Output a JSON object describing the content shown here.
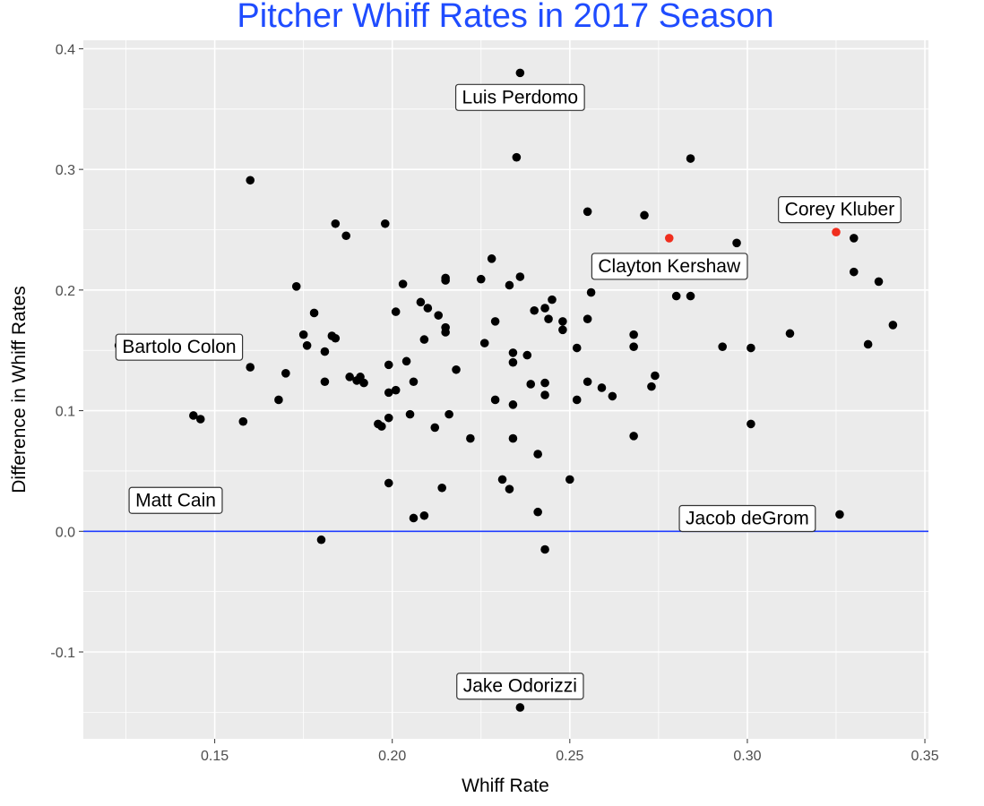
{
  "chart_data": {
    "type": "scatter",
    "title": "Pitcher Whiff Rates in 2017 Season",
    "xlabel": "Whiff Rate",
    "ylabel": "Difference in Whiff Rates",
    "xlim": [
      0.113,
      0.351
    ],
    "ylim": [
      -0.172,
      0.407
    ],
    "x_ticks": [
      "0.15",
      "0.20",
      "0.25",
      "0.30",
      "0.35"
    ],
    "y_ticks": [
      "-0.1",
      "0.0",
      "0.1",
      "0.2",
      "0.3",
      "0.4"
    ],
    "grid": true,
    "reference_line": {
      "y": 0.0,
      "color": "#1f3cff"
    },
    "colors": {
      "title": "#1f4cff",
      "point": "#000000",
      "highlight": "#f02e1e",
      "panel_background": "#ebebeb",
      "grid": "#ffffff"
    },
    "points": [
      {
        "x": 0.236,
        "y": 0.38
      },
      {
        "x": 0.235,
        "y": 0.31
      },
      {
        "x": 0.284,
        "y": 0.309
      },
      {
        "x": 0.16,
        "y": 0.291
      },
      {
        "x": 0.255,
        "y": 0.265
      },
      {
        "x": 0.271,
        "y": 0.262
      },
      {
        "x": 0.184,
        "y": 0.255
      },
      {
        "x": 0.198,
        "y": 0.255
      },
      {
        "x": 0.187,
        "y": 0.245
      },
      {
        "x": 0.33,
        "y": 0.243
      },
      {
        "x": 0.297,
        "y": 0.239
      },
      {
        "x": 0.228,
        "y": 0.226
      },
      {
        "x": 0.33,
        "y": 0.215
      },
      {
        "x": 0.236,
        "y": 0.211
      },
      {
        "x": 0.215,
        "y": 0.21
      },
      {
        "x": 0.225,
        "y": 0.209
      },
      {
        "x": 0.215,
        "y": 0.208
      },
      {
        "x": 0.337,
        "y": 0.207
      },
      {
        "x": 0.203,
        "y": 0.205
      },
      {
        "x": 0.233,
        "y": 0.204
      },
      {
        "x": 0.173,
        "y": 0.203
      },
      {
        "x": 0.256,
        "y": 0.198
      },
      {
        "x": 0.28,
        "y": 0.195
      },
      {
        "x": 0.284,
        "y": 0.195
      },
      {
        "x": 0.245,
        "y": 0.192
      },
      {
        "x": 0.208,
        "y": 0.19
      },
      {
        "x": 0.21,
        "y": 0.185
      },
      {
        "x": 0.243,
        "y": 0.185
      },
      {
        "x": 0.24,
        "y": 0.183
      },
      {
        "x": 0.201,
        "y": 0.182
      },
      {
        "x": 0.178,
        "y": 0.181
      },
      {
        "x": 0.213,
        "y": 0.179
      },
      {
        "x": 0.244,
        "y": 0.176
      },
      {
        "x": 0.255,
        "y": 0.176
      },
      {
        "x": 0.229,
        "y": 0.174
      },
      {
        "x": 0.248,
        "y": 0.174
      },
      {
        "x": 0.341,
        "y": 0.171
      },
      {
        "x": 0.215,
        "y": 0.169
      },
      {
        "x": 0.248,
        "y": 0.167
      },
      {
        "x": 0.215,
        "y": 0.165
      },
      {
        "x": 0.312,
        "y": 0.164
      },
      {
        "x": 0.175,
        "y": 0.163
      },
      {
        "x": 0.268,
        "y": 0.163
      },
      {
        "x": 0.183,
        "y": 0.162
      },
      {
        "x": 0.184,
        "y": 0.16
      },
      {
        "x": 0.209,
        "y": 0.159
      },
      {
        "x": 0.226,
        "y": 0.156
      },
      {
        "x": 0.334,
        "y": 0.155
      },
      {
        "x": 0.176,
        "y": 0.154
      },
      {
        "x": 0.293,
        "y": 0.153
      },
      {
        "x": 0.268,
        "y": 0.153
      },
      {
        "x": 0.252,
        "y": 0.152
      },
      {
        "x": 0.301,
        "y": 0.152
      },
      {
        "x": 0.181,
        "y": 0.149
      },
      {
        "x": 0.234,
        "y": 0.148
      },
      {
        "x": 0.238,
        "y": 0.146
      },
      {
        "x": 0.204,
        "y": 0.141
      },
      {
        "x": 0.234,
        "y": 0.14
      },
      {
        "x": 0.199,
        "y": 0.138
      },
      {
        "x": 0.16,
        "y": 0.136
      },
      {
        "x": 0.218,
        "y": 0.134
      },
      {
        "x": 0.17,
        "y": 0.131
      },
      {
        "x": 0.274,
        "y": 0.129
      },
      {
        "x": 0.188,
        "y": 0.128
      },
      {
        "x": 0.191,
        "y": 0.128
      },
      {
        "x": 0.19,
        "y": 0.125
      },
      {
        "x": 0.181,
        "y": 0.124
      },
      {
        "x": 0.255,
        "y": 0.124
      },
      {
        "x": 0.192,
        "y": 0.123
      },
      {
        "x": 0.206,
        "y": 0.124
      },
      {
        "x": 0.243,
        "y": 0.123
      },
      {
        "x": 0.239,
        "y": 0.122
      },
      {
        "x": 0.273,
        "y": 0.12
      },
      {
        "x": 0.259,
        "y": 0.119
      },
      {
        "x": 0.201,
        "y": 0.117
      },
      {
        "x": 0.199,
        "y": 0.115
      },
      {
        "x": 0.243,
        "y": 0.113
      },
      {
        "x": 0.262,
        "y": 0.112
      },
      {
        "x": 0.229,
        "y": 0.109
      },
      {
        "x": 0.252,
        "y": 0.109
      },
      {
        "x": 0.168,
        "y": 0.109
      },
      {
        "x": 0.234,
        "y": 0.105
      },
      {
        "x": 0.205,
        "y": 0.097
      },
      {
        "x": 0.216,
        "y": 0.097
      },
      {
        "x": 0.144,
        "y": 0.096
      },
      {
        "x": 0.146,
        "y": 0.093
      },
      {
        "x": 0.199,
        "y": 0.094
      },
      {
        "x": 0.158,
        "y": 0.091
      },
      {
        "x": 0.196,
        "y": 0.089
      },
      {
        "x": 0.301,
        "y": 0.089
      },
      {
        "x": 0.197,
        "y": 0.087
      },
      {
        "x": 0.212,
        "y": 0.086
      },
      {
        "x": 0.268,
        "y": 0.079
      },
      {
        "x": 0.222,
        "y": 0.077
      },
      {
        "x": 0.234,
        "y": 0.077
      },
      {
        "x": 0.241,
        "y": 0.064
      },
      {
        "x": 0.231,
        "y": 0.043
      },
      {
        "x": 0.25,
        "y": 0.043
      },
      {
        "x": 0.199,
        "y": 0.04
      },
      {
        "x": 0.214,
        "y": 0.036
      },
      {
        "x": 0.233,
        "y": 0.035
      },
      {
        "x": 0.127,
        "y": 0.026
      },
      {
        "x": 0.241,
        "y": 0.016
      },
      {
        "x": 0.326,
        "y": 0.014
      },
      {
        "x": 0.209,
        "y": 0.013
      },
      {
        "x": 0.206,
        "y": 0.011
      },
      {
        "x": 0.18,
        "y": -0.007
      },
      {
        "x": 0.243,
        "y": -0.015
      },
      {
        "x": 0.236,
        "y": -0.146
      },
      {
        "x": 0.123,
        "y": 0.154
      },
      {
        "x": 0.278,
        "y": 0.243,
        "highlight": true
      },
      {
        "x": 0.325,
        "y": 0.248,
        "highlight": true
      }
    ],
    "annotations": [
      {
        "text": "Luis Perdomo",
        "x": 0.236,
        "y": 0.36
      },
      {
        "text": "Corey Kluber",
        "x": 0.326,
        "y": 0.267
      },
      {
        "text": "Clayton Kershaw",
        "x": 0.278,
        "y": 0.22
      },
      {
        "text": "Bartolo Colon",
        "x": 0.14,
        "y": 0.153
      },
      {
        "text": "Matt Cain",
        "x": 0.139,
        "y": 0.026
      },
      {
        "text": "Jacob deGrom",
        "x": 0.3,
        "y": 0.011
      },
      {
        "text": "Jake Odorizzi",
        "x": 0.236,
        "y": -0.128
      }
    ]
  }
}
